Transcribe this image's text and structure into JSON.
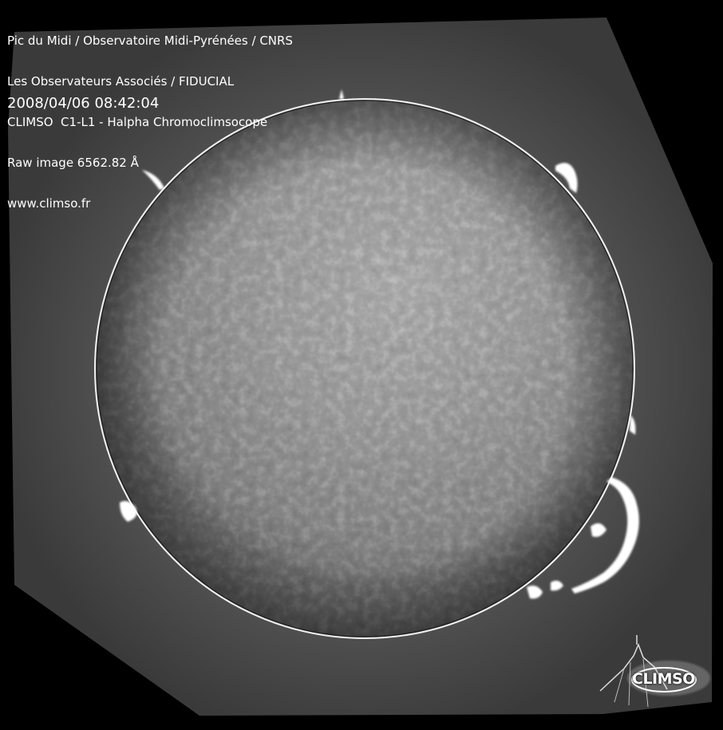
{
  "caption": {
    "lines": [
      "Pic du Midi / Observatoire Midi-Pyrénées / CNRS",
      "Les Observateurs Associés / FIDUCIAL",
      "CLIMSO  C1-L1 - Halpha Chromoclimsocope",
      "Raw image 6562.82 Å",
      "www.climso.fr"
    ],
    "timestamp": "2008/04/06 08:42:04"
  },
  "logo": {
    "text": "CLIMSO"
  },
  "colors": {
    "background": "#000000",
    "field": "#4a4a4a",
    "disk_center": "#b4b4b4",
    "disk_edge": "#3a3a3a",
    "limb": "#f4f4f4",
    "text": "#ffffff"
  }
}
